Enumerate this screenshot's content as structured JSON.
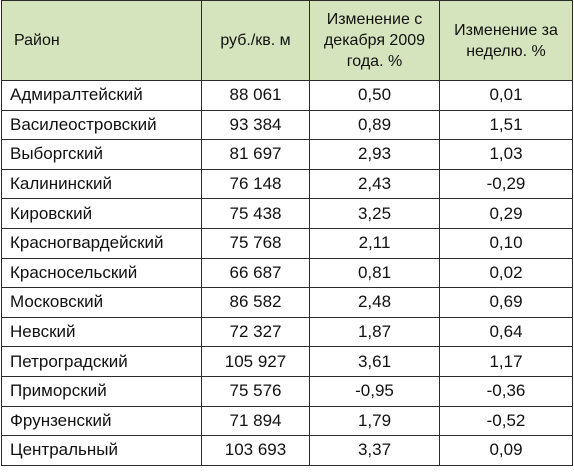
{
  "table": {
    "headers": {
      "district": "Район",
      "price": "руб./кв.  м",
      "change_since_dec": "Изменение с декабря 2009 года. %",
      "change_week": "Изменение за неделю. %"
    },
    "rows": [
      {
        "district": "Адмиралтейский",
        "price": "88 061",
        "change_since_dec": "0,50",
        "change_week": "0,01"
      },
      {
        "district": "Василеостровский",
        "price": "93 384",
        "change_since_dec": "0,89",
        "change_week": "1,51"
      },
      {
        "district": "Выборгский",
        "price": "81 697",
        "change_since_dec": "2,93",
        "change_week": "1,03"
      },
      {
        "district": "Калининский",
        "price": "76 148",
        "change_since_dec": "2,43",
        "change_week": "-0,29"
      },
      {
        "district": "Кировский",
        "price": "75 438",
        "change_since_dec": "3,25",
        "change_week": "0,29"
      },
      {
        "district": "Красногвардейский",
        "price": "75 768",
        "change_since_dec": "2,11",
        "change_week": "0,10"
      },
      {
        "district": "Красносельский",
        "price": "66 687",
        "change_since_dec": "0,81",
        "change_week": "0,02"
      },
      {
        "district": "Московский",
        "price": "86 582",
        "change_since_dec": "2,48",
        "change_week": "0,69"
      },
      {
        "district": "Невский",
        "price": "72 327",
        "change_since_dec": "1,87",
        "change_week": "0,64"
      },
      {
        "district": "Петроградский",
        "price": "105 927",
        "change_since_dec": "3,61",
        "change_week": "1,17"
      },
      {
        "district": "Приморский",
        "price": "75 576",
        "change_since_dec": "-0,95",
        "change_week": "-0,36"
      },
      {
        "district": "Фрунзенский",
        "price": "71 894",
        "change_since_dec": "1,79",
        "change_week": "-0,52"
      },
      {
        "district": "Центральный",
        "price": "103 693",
        "change_since_dec": "3,37",
        "change_week": "0,09"
      }
    ]
  },
  "colors": {
    "header_background": "#d6e4bd",
    "border": "#2b2b2b",
    "text": "#111111"
  }
}
